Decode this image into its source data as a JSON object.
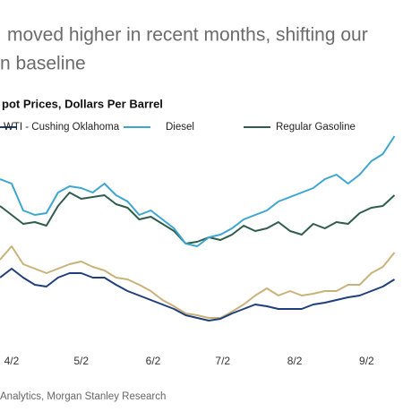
{
  "header": {
    "lines": [
      "moved higher in recent months, shifting our",
      "n baseline"
    ]
  },
  "chart_data": {
    "type": "line",
    "title": "pot Prices, Dollars Per Barrel",
    "x": [
      -5,
      0,
      5,
      10,
      15,
      20,
      25,
      30,
      35,
      40,
      45,
      50,
      55,
      60,
      65,
      70,
      75,
      80,
      85,
      90,
      95,
      100,
      105,
      110,
      115,
      120,
      125,
      130,
      135,
      140,
      145,
      150,
      155,
      160,
      165
    ],
    "xlim": [
      -5,
      176
    ],
    "xticks": [
      {
        "value": 0,
        "label": "4/2"
      },
      {
        "value": 30,
        "label": "5/2"
      },
      {
        "value": 61,
        "label": "6/2"
      },
      {
        "value": 91,
        "label": "7/2"
      },
      {
        "value": 122,
        "label": "8/2"
      },
      {
        "value": 153,
        "label": "9/2"
      }
    ],
    "series": [
      {
        "name": "WTI - Cushing Oklahoma",
        "color": "#1f3f7a",
        "values": [
          90,
          100,
          90,
          82,
          80,
          90,
          95,
          95,
          90,
          90,
          82,
          75,
          70,
          65,
          60,
          55,
          48,
          45,
          42,
          44,
          50,
          55,
          60,
          58,
          55,
          55,
          55,
          60,
          62,
          65,
          68,
          70,
          75,
          80,
          88
        ]
      },
      {
        "name": "Diesel",
        "color": "#3ca6cf",
        "values": [
          200,
          195,
          165,
          160,
          162,
          185,
          192,
          190,
          185,
          195,
          182,
          175,
          160,
          165,
          155,
          145,
          128,
          125,
          135,
          138,
          145,
          155,
          160,
          165,
          175,
          180,
          185,
          190,
          200,
          205,
          195,
          205,
          220,
          228,
          248
        ]
      },
      {
        "name": "Regular Gasoline",
        "color": "#2f5d4c",
        "values": [
          170,
          160,
          150,
          152,
          148,
          170,
          185,
          178,
          180,
          182,
          172,
          168,
          155,
          158,
          150,
          142,
          128,
          130,
          135,
          132,
          138,
          148,
          142,
          145,
          152,
          142,
          138,
          150,
          145,
          152,
          150,
          162,
          168,
          170,
          182
        ]
      },
      {
        "color": "#c9b27a",
        "values": [
          110,
          125,
          105,
          100,
          95,
          100,
          105,
          108,
          102,
          98,
          90,
          88,
          82,
          75,
          65,
          58,
          50,
          48,
          45,
          45,
          52,
          60,
          70,
          78,
          70,
          75,
          70,
          72,
          75,
          75,
          82,
          82,
          95,
          102,
          118
        ]
      }
    ]
  },
  "source": "Analytics, Morgan Stanley Research"
}
